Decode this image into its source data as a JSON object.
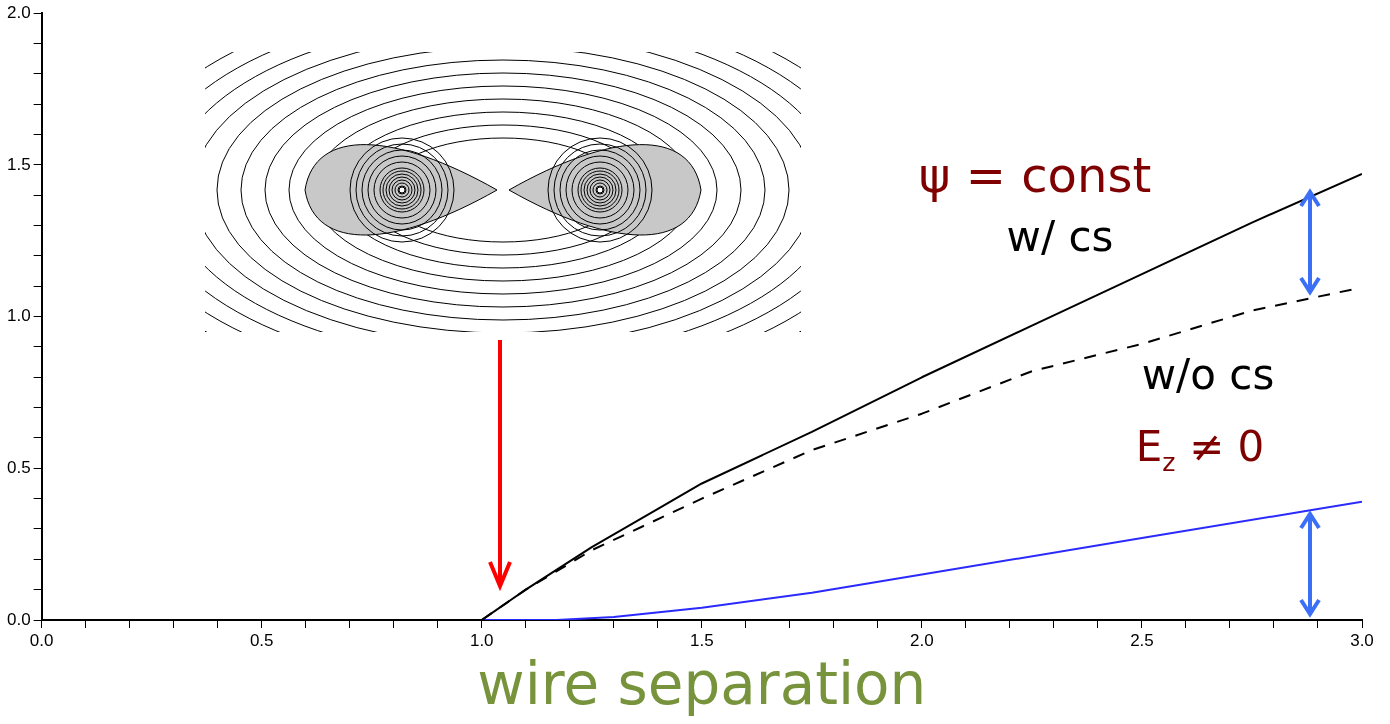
{
  "chart_data": {
    "type": "line",
    "xlabel": "wire separation",
    "xlim": [
      0,
      3
    ],
    "ylim": [
      0,
      2
    ],
    "xticks": [
      {
        "value": 0,
        "label": "0.0"
      },
      {
        "value": 0.1,
        "label": null
      },
      {
        "value": 0.2,
        "label": null
      },
      {
        "value": 0.3,
        "label": null
      },
      {
        "value": 0.4,
        "label": null
      },
      {
        "value": 0.5,
        "label": "0.5"
      },
      {
        "value": 0.6,
        "label": null
      },
      {
        "value": 0.7,
        "label": null
      },
      {
        "value": 0.8,
        "label": null
      },
      {
        "value": 0.9,
        "label": null
      },
      {
        "value": 1,
        "label": "1.0"
      },
      {
        "value": 1.1,
        "label": null
      },
      {
        "value": 1.2,
        "label": null
      },
      {
        "value": 1.3,
        "label": null
      },
      {
        "value": 1.4,
        "label": null
      },
      {
        "value": 1.5,
        "label": "1.5"
      },
      {
        "value": 1.6,
        "label": null
      },
      {
        "value": 1.7,
        "label": null
      },
      {
        "value": 1.8,
        "label": null
      },
      {
        "value": 1.9,
        "label": null
      },
      {
        "value": 2,
        "label": "2.0"
      },
      {
        "value": 2.1,
        "label": null
      },
      {
        "value": 2.2,
        "label": null
      },
      {
        "value": 2.3,
        "label": null
      },
      {
        "value": 2.4,
        "label": null
      },
      {
        "value": 2.5,
        "label": "2.5"
      },
      {
        "value": 2.6,
        "label": null
      },
      {
        "value": 2.7,
        "label": null
      },
      {
        "value": 2.8,
        "label": null
      },
      {
        "value": 2.9,
        "label": null
      },
      {
        "value": 3,
        "label": "3.0"
      }
    ],
    "yticks": [
      {
        "value": 0,
        "label": "0.0"
      },
      {
        "value": 0.1,
        "label": null
      },
      {
        "value": 0.2,
        "label": null
      },
      {
        "value": 0.3,
        "label": null
      },
      {
        "value": 0.4,
        "label": null
      },
      {
        "value": 0.5,
        "label": "0.5"
      },
      {
        "value": 0.6,
        "label": null
      },
      {
        "value": 0.7,
        "label": null
      },
      {
        "value": 0.8,
        "label": null
      },
      {
        "value": 0.9,
        "label": null
      },
      {
        "value": 1,
        "label": "1.0"
      },
      {
        "value": 1.1,
        "label": null
      },
      {
        "value": 1.2,
        "label": null
      },
      {
        "value": 1.3,
        "label": null
      },
      {
        "value": 1.4,
        "label": null
      },
      {
        "value": 1.5,
        "label": "1.5"
      },
      {
        "value": 1.6,
        "label": null
      },
      {
        "value": 1.7,
        "label": null
      },
      {
        "value": 1.8,
        "label": null
      },
      {
        "value": 1.9,
        "label": null
      },
      {
        "value": 2,
        "label": "2.0"
      }
    ],
    "grid": false,
    "legend": false,
    "marker": "none",
    "series": [
      {
        "color": "#000000",
        "line_style": "solid",
        "x": [
          1.0,
          1.1,
          1.25,
          1.5,
          1.75,
          2.0,
          2.25,
          2.5,
          2.75,
          3.0
        ],
        "values": [
          0,
          0.1,
          0.24,
          0.45,
          0.62,
          0.8,
          0.97,
          1.14,
          1.31,
          1.47
        ]
      },
      {
        "color": "#000000",
        "line_style": "dashed",
        "x": [
          1.0,
          1.1,
          1.25,
          1.5,
          1.75,
          2.0,
          2.25,
          2.5,
          2.75,
          2.98
        ],
        "values": [
          0,
          0.1,
          0.23,
          0.4,
          0.56,
          0.68,
          0.82,
          0.91,
          1.02,
          1.09
        ]
      },
      {
        "color": "#2a2aff",
        "line_style": "solid",
        "x": [
          1.0,
          1.17,
          1.3,
          1.5,
          1.75,
          2.0,
          2.5,
          3.0
        ],
        "values": [
          0,
          0,
          0.01,
          0.04,
          0.09,
          0.15,
          0.27,
          0.39
        ]
      }
    ],
    "annotations": [
      "ψ = const",
      "w/ cs",
      "w/o cs",
      "E$_{z}$ ≠ 0"
    ]
  }
}
